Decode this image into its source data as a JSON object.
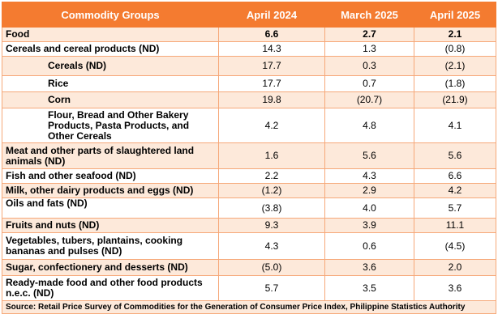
{
  "headers": [
    "Commodity Groups",
    "April 2024",
    "March 2025",
    "April 2025"
  ],
  "rows": [
    {
      "label": "Food",
      "values": [
        "6.6",
        "2.7",
        "2.1"
      ]
    },
    {
      "label": "Cereals and cereal products (ND)",
      "values": [
        "14.3",
        "1.3",
        "(0.8)"
      ]
    },
    {
      "label": "Cereals (ND)",
      "values": [
        "17.7",
        "0.3",
        "(2.1)"
      ]
    },
    {
      "label": "Rice",
      "values": [
        "17.7",
        "0.7",
        "(1.8)"
      ]
    },
    {
      "label": "Corn",
      "values": [
        "19.8",
        "(20.7)",
        "(21.9)"
      ]
    },
    {
      "label": "Flour, Bread and Other Bakery Products, Pasta Products,  and Other Cereals",
      "values": [
        "4.2",
        "4.8",
        "4.1"
      ]
    },
    {
      "label": "Meat and other parts of slaughtered land animals (ND)",
      "values": [
        "1.6",
        "5.6",
        "5.6"
      ]
    },
    {
      "label": "Fish and other seafood (ND)",
      "values": [
        "2.2",
        "4.3",
        "6.6"
      ]
    },
    {
      "label": "Milk, other dairy products and eggs (ND)",
      "values": [
        "(1.2)",
        "2.9",
        "4.2"
      ]
    },
    {
      "label": "Oils and fats (ND)",
      "values": [
        "(3.8)",
        "4.0",
        "5.7"
      ]
    },
    {
      "label": "Fruits and nuts (ND)",
      "values": [
        "9.3",
        "3.9",
        "11.1"
      ]
    },
    {
      "label": "Vegetables, tubers, plantains, cooking bananas and pulses (ND)",
      "values": [
        "4.3",
        "0.6",
        "(4.5)"
      ]
    },
    {
      "label": "Sugar, confectionery and desserts (ND)",
      "values": [
        "(5.0)",
        "3.6",
        "2.0"
      ]
    },
    {
      "label": "Ready-made food and other food products n.e.c. (ND)",
      "values": [
        "5.7",
        "3.5",
        "3.6"
      ]
    }
  ],
  "source": "Source: Retail Price Survey of Commodities for the Generation of Consumer Price Index, Philippine Statistics Authority"
}
